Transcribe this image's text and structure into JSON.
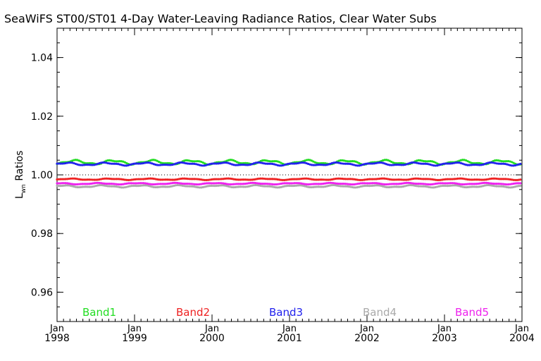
{
  "chart_data": {
    "type": "line",
    "title": "SeaWiFS ST00/ST01 4-Day Water-Leaving Radiance Ratios, Clear Water Subs",
    "ylabel_main": "L",
    "ylabel_sub": "wn",
    "ylabel_rest": " Ratios",
    "xlim": [
      1998.0,
      2004.0
    ],
    "ylim": [
      0.95,
      1.05
    ],
    "yticks": [
      0.96,
      0.98,
      1.0,
      1.02,
      1.04
    ],
    "ytick_labels": [
      "0.96",
      "0.98",
      "1.00",
      "1.02",
      "1.04"
    ],
    "xticks": [
      {
        "x": 1998.0,
        "month": "Jan",
        "year": "1998"
      },
      {
        "x": 1999.0,
        "month": "Jan",
        "year": "1999"
      },
      {
        "x": 2000.0,
        "month": "Jan",
        "year": "2000"
      },
      {
        "x": 2001.0,
        "month": "Jan",
        "year": "2001"
      },
      {
        "x": 2002.0,
        "month": "Jan",
        "year": "2002"
      },
      {
        "x": 2003.0,
        "month": "Jan",
        "year": "2003"
      },
      {
        "x": 2004.0,
        "month": "Jan",
        "year": "2004"
      }
    ],
    "reference_line": 1.0,
    "grid": false,
    "legend_position": "bottom",
    "series": [
      {
        "name": "Band1",
        "color": "#22dd22",
        "base": 1.0043,
        "amp": 0.0006
      },
      {
        "name": "Band2",
        "color": "#ee2222",
        "base": 0.9985,
        "amp": 0.0002
      },
      {
        "name": "Band3",
        "color": "#2222ee",
        "base": 1.0037,
        "amp": 0.0004
      },
      {
        "name": "Band4",
        "color": "#aaaaaa",
        "base": 0.9961,
        "amp": 0.0003
      },
      {
        "name": "Band5",
        "color": "#ee22ee",
        "base": 0.997,
        "amp": 0.0002
      }
    ]
  }
}
